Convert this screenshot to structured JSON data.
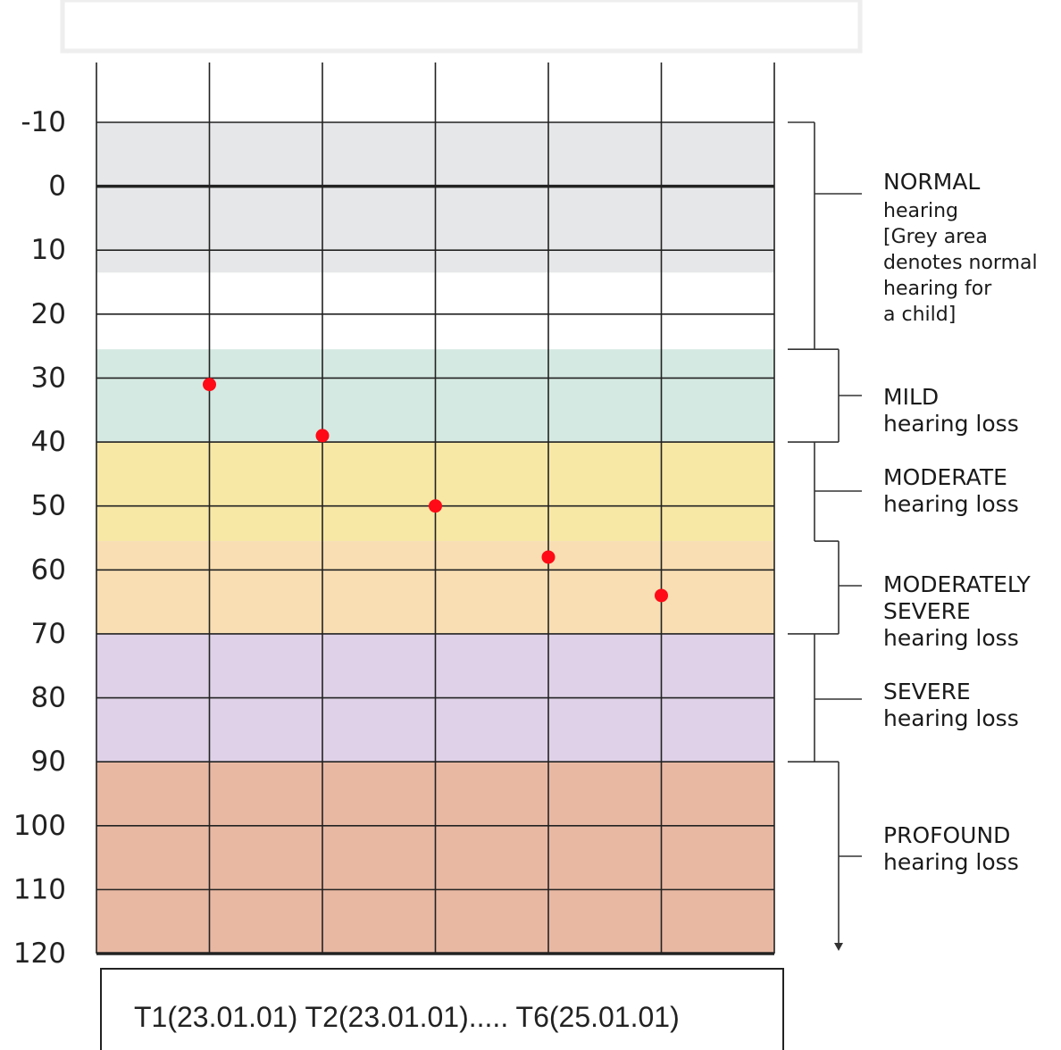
{
  "chart_data": {
    "type": "scatter",
    "xlabel": "",
    "ylabel": "",
    "ylim": [
      -10,
      120
    ],
    "y_ticks": [
      "-10",
      "0",
      "10",
      "20",
      "30",
      "40",
      "50",
      "60",
      "70",
      "80",
      "90",
      "100",
      "110",
      "120"
    ],
    "y_tick_values": [
      -10,
      0,
      10,
      20,
      30,
      40,
      50,
      60,
      70,
      80,
      90,
      100,
      110,
      120
    ],
    "vertical_gridlines": 7,
    "grid": true,
    "bands": [
      {
        "from": -10,
        "to": 13.5,
        "color": "#e6e7e9"
      },
      {
        "from": 25.5,
        "to": 40,
        "color": "#d4e9e1"
      },
      {
        "from": 40,
        "to": 55.5,
        "color": "#f8e8a6"
      },
      {
        "from": 55.5,
        "to": 70,
        "color": "#f8deb2"
      },
      {
        "from": 70,
        "to": 90,
        "color": "#dfd2e8"
      },
      {
        "from": 90,
        "to": 120,
        "color": "#e8b8a3"
      }
    ],
    "series": [
      {
        "color": "#ff0a16",
        "points": [
          {
            "x": 1,
            "y": 31
          },
          {
            "x": 2,
            "y": 39
          },
          {
            "x": 3,
            "y": 50
          },
          {
            "x": 4,
            "y": 58
          },
          {
            "x": 5,
            "y": 64
          }
        ]
      }
    ],
    "categories": [
      {
        "title": "NORMAL",
        "lines": [
          "hearing",
          "[Grey area",
          "denotes normal",
          "hearing for",
          "a child]"
        ],
        "from": -10,
        "to": 25.5
      },
      {
        "title": "MILD",
        "lines": [
          "hearing loss"
        ],
        "from": 25.5,
        "to": 40
      },
      {
        "title": "MODERATE",
        "lines": [
          "hearing loss"
        ],
        "from": 40,
        "to": 55.5
      },
      {
        "title": "MODERATELY",
        "title2": "SEVERE",
        "lines": [
          "hearing loss"
        ],
        "from": 55.5,
        "to": 70
      },
      {
        "title": "SEVERE",
        "lines": [
          "hearing loss"
        ],
        "from": 70,
        "to": 90
      },
      {
        "title": "PROFOUND",
        "lines": [
          "hearing loss"
        ],
        "from": 90,
        "to": 120
      }
    ],
    "caption": "T1(23.01.01) T2(23.01.01)..... T6(25.01.01)"
  }
}
